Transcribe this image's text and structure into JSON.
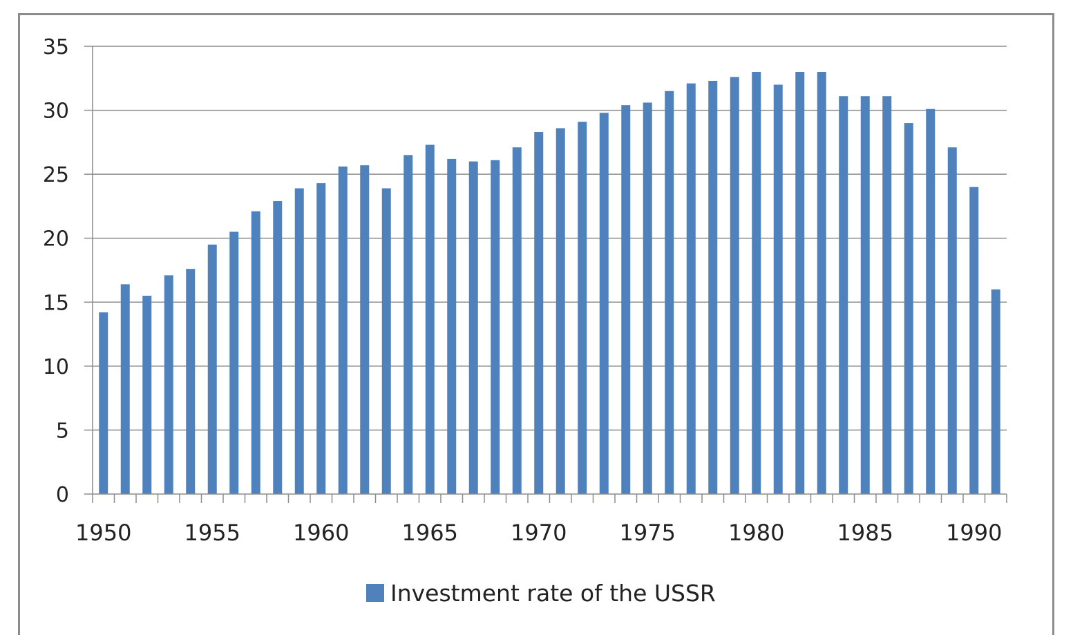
{
  "chart_data": {
    "type": "bar",
    "title": "",
    "xlabel": "",
    "ylabel": "",
    "ylim": [
      0,
      35
    ],
    "yticks": [
      0,
      5,
      10,
      15,
      20,
      25,
      30,
      35
    ],
    "xtick_labels": [
      "1950",
      "1955",
      "1960",
      "1965",
      "1970",
      "1975",
      "1980",
      "1985",
      "1990"
    ],
    "grid": true,
    "legend_position": "bottom",
    "categories": [
      1950,
      1951,
      1952,
      1953,
      1954,
      1955,
      1956,
      1957,
      1958,
      1959,
      1960,
      1961,
      1962,
      1963,
      1964,
      1965,
      1966,
      1967,
      1968,
      1969,
      1970,
      1971,
      1972,
      1973,
      1974,
      1975,
      1976,
      1977,
      1978,
      1979,
      1980,
      1981,
      1982,
      1983,
      1984,
      1985,
      1986,
      1987,
      1988,
      1989,
      1990,
      1991
    ],
    "series": [
      {
        "name": "Investment rate of the USSR",
        "color": "#4f81bd",
        "values": [
          14.2,
          16.4,
          15.5,
          17.1,
          17.6,
          19.5,
          20.5,
          22.1,
          22.9,
          23.9,
          24.3,
          25.6,
          25.7,
          23.9,
          26.5,
          27.3,
          26.2,
          26.0,
          26.1,
          27.1,
          28.3,
          28.6,
          29.1,
          29.8,
          30.4,
          30.6,
          31.5,
          32.1,
          32.3,
          32.6,
          33.0,
          32.0,
          33.0,
          33.0,
          31.1,
          31.1,
          31.1,
          29.0,
          30.1,
          27.1,
          24.0,
          16.0
        ]
      }
    ]
  },
  "legend": {
    "label": "Investment rate of the USSR"
  },
  "colors": {
    "bar": "#4f81bd",
    "grid": "#8c8c8c",
    "frame": "#8c8c8c",
    "text": "#222222"
  }
}
